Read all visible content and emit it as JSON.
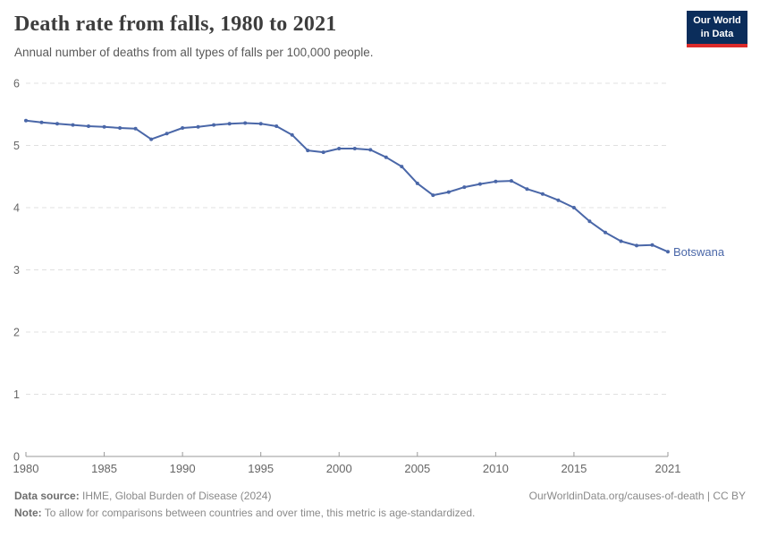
{
  "header": {
    "title": "Death rate from falls, 1980 to 2021",
    "subtitle": "Annual number of deaths from all types of falls per 100,000 people.",
    "logo": {
      "line1": "Our World",
      "line2": "in Data"
    }
  },
  "chart_data": {
    "type": "line",
    "title": "Death rate from falls, 1980 to 2021",
    "subtitle": "Annual number of deaths from all types of falls per 100,000 people.",
    "xlabel": "",
    "ylabel": "",
    "ylim": [
      0,
      6
    ],
    "yticks": [
      0,
      1,
      2,
      3,
      4,
      5,
      6
    ],
    "xticks": [
      1980,
      1985,
      1990,
      1995,
      2000,
      2005,
      2010,
      2015,
      2021
    ],
    "grid": "horizontal-dashed",
    "legend_position": "end-of-line",
    "x": [
      1980,
      1981,
      1982,
      1983,
      1984,
      1985,
      1986,
      1987,
      1988,
      1989,
      1990,
      1991,
      1992,
      1993,
      1994,
      1995,
      1996,
      1997,
      1998,
      1999,
      2000,
      2001,
      2002,
      2003,
      2004,
      2005,
      2006,
      2007,
      2008,
      2009,
      2010,
      2011,
      2012,
      2013,
      2014,
      2015,
      2016,
      2017,
      2018,
      2019,
      2020,
      2021
    ],
    "series": [
      {
        "name": "Botswana",
        "color": "#4a67a8",
        "values": [
          5.4,
          5.37,
          5.35,
          5.33,
          5.31,
          5.3,
          5.28,
          5.27,
          5.1,
          5.19,
          5.28,
          5.3,
          5.33,
          5.35,
          5.36,
          5.35,
          5.31,
          5.17,
          4.92,
          4.89,
          4.95,
          4.95,
          4.93,
          4.81,
          4.66,
          4.39,
          4.2,
          4.25,
          4.33,
          4.38,
          4.42,
          4.43,
          4.3,
          4.22,
          4.12,
          4.0,
          3.78,
          3.6,
          3.46,
          3.39,
          3.4,
          3.29
        ]
      }
    ]
  },
  "footer": {
    "datasource_label": "Data source:",
    "datasource_text": " IHME, Global Burden of Disease (2024)",
    "credit": "OurWorldinData.org/causes-of-death | CC BY",
    "note_label": "Note:",
    "note_text": " To allow for comparisons between countries and over time, this metric is age-standardized."
  },
  "colors": {
    "line": "#4a67a8",
    "gridline": "#e0e0e0",
    "axis": "#9a9a9a",
    "tick_text": "#666666",
    "logo_bg": "#0b2d5b",
    "logo_accent": "#dc2a2a"
  }
}
